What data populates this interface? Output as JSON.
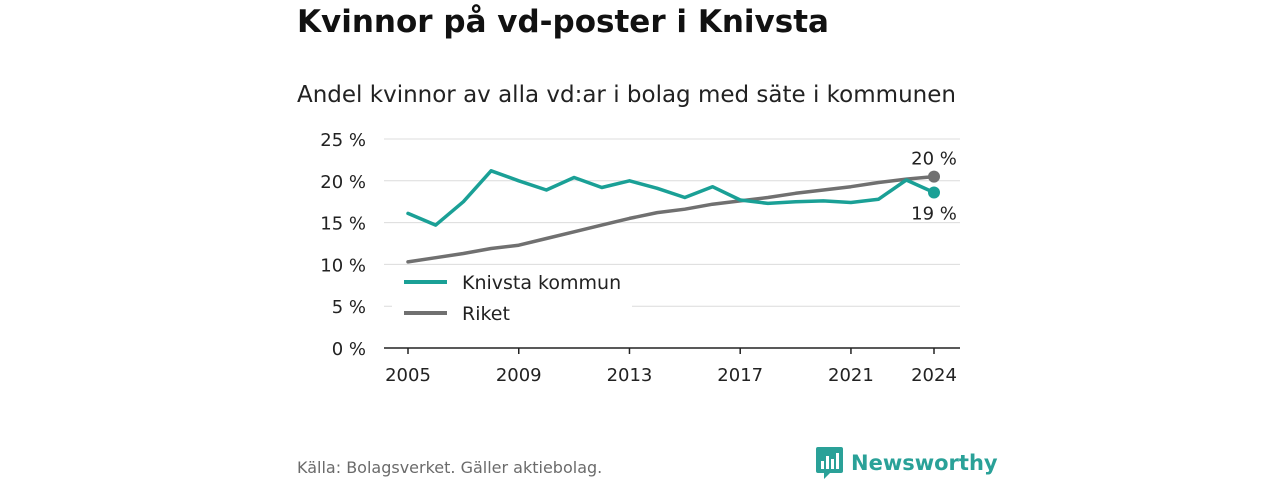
{
  "title": "Kvinnor på vd-poster i Knivsta",
  "subtitle": "Andel kvinnor av alla vd:ar i bolag med säte i kommunen",
  "source": "Källa: Bolagsverket. Gäller aktiebolag.",
  "brand": {
    "name": "Newsworthy",
    "icon": "newsworthy-logo-icon",
    "color": "#2aa198"
  },
  "chart_data": {
    "type": "line",
    "ylim": [
      0,
      25
    ],
    "yticks": [
      0,
      5,
      10,
      15,
      20,
      25
    ],
    "ytick_labels": [
      "0 %",
      "5 %",
      "10 %",
      "15 %",
      "20 %",
      "25 %"
    ],
    "xlim": [
      2005,
      2024
    ],
    "xticks": [
      2005,
      2009,
      2013,
      2017,
      2021,
      2024
    ],
    "xtick_labels": [
      "2005",
      "2009",
      "2013",
      "2017",
      "2021",
      "2024"
    ],
    "grid": true,
    "legend_position": "bottom-left",
    "x": [
      2005,
      2006,
      2007,
      2008,
      2009,
      2010,
      2011,
      2012,
      2013,
      2014,
      2015,
      2016,
      2017,
      2018,
      2019,
      2020,
      2021,
      2022,
      2023,
      2024
    ],
    "series": [
      {
        "name": "Knivsta kommun",
        "color": "#1aa096",
        "values": [
          16.1,
          14.7,
          17.5,
          21.2,
          20.0,
          18.9,
          20.4,
          19.2,
          20.0,
          19.1,
          18.0,
          19.3,
          17.7,
          17.3,
          17.5,
          17.6,
          17.4,
          17.8,
          20.1,
          18.6
        ],
        "end_label": "19 %"
      },
      {
        "name": "Riket",
        "color": "#707070",
        "values": [
          10.3,
          10.8,
          11.3,
          11.9,
          12.3,
          13.1,
          13.9,
          14.7,
          15.5,
          16.2,
          16.6,
          17.2,
          17.6,
          18.0,
          18.5,
          18.9,
          19.3,
          19.8,
          20.2,
          20.5
        ],
        "end_label": "20 %"
      }
    ]
  }
}
